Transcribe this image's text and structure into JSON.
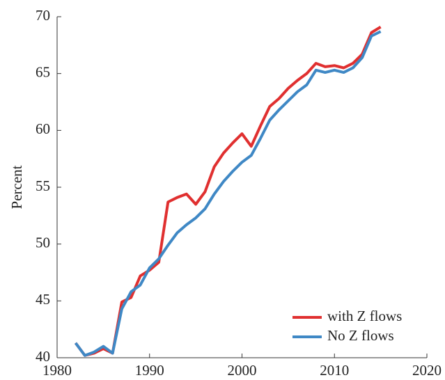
{
  "chart_data": {
    "type": "line",
    "ylabel": "Percent",
    "x": [
      1982,
      1983,
      1984,
      1985,
      1986,
      1987,
      1988,
      1989,
      1990,
      1991,
      1992,
      1993,
      1994,
      1995,
      1996,
      1997,
      1998,
      1999,
      2000,
      2001,
      2002,
      2003,
      2004,
      2005,
      2006,
      2007,
      2008,
      2009,
      2010,
      2011,
      2012,
      2013,
      2014,
      2015
    ],
    "series": [
      {
        "name": "with Z flows",
        "color": "#e03030",
        "values": [
          41.3,
          40.2,
          40.4,
          40.8,
          40.4,
          44.9,
          45.3,
          47.2,
          47.7,
          48.4,
          53.7,
          54.1,
          54.4,
          53.5,
          54.6,
          56.8,
          58.0,
          58.9,
          59.7,
          58.6,
          60.4,
          62.1,
          62.8,
          63.7,
          64.4,
          65.0,
          65.9,
          65.6,
          65.7,
          65.5,
          65.9,
          66.7,
          68.6,
          69.1
        ]
      },
      {
        "name": "No Z flows",
        "color": "#3f88c5",
        "values": [
          41.3,
          40.2,
          40.5,
          41.0,
          40.4,
          44.3,
          45.8,
          46.4,
          47.9,
          48.7,
          49.9,
          51.0,
          51.7,
          52.3,
          53.1,
          54.4,
          55.5,
          56.4,
          57.2,
          57.8,
          59.3,
          60.9,
          61.8,
          62.6,
          63.4,
          64.0,
          65.3,
          65.1,
          65.3,
          65.1,
          65.5,
          66.4,
          68.3,
          68.7
        ]
      }
    ],
    "xlim": [
      1980,
      2020
    ],
    "xticks": [
      1980,
      1990,
      2000,
      2010,
      2020
    ],
    "ylim": [
      40,
      70
    ],
    "yticks": [
      40,
      45,
      50,
      55,
      60,
      65,
      70
    ],
    "legend": "lower right"
  }
}
